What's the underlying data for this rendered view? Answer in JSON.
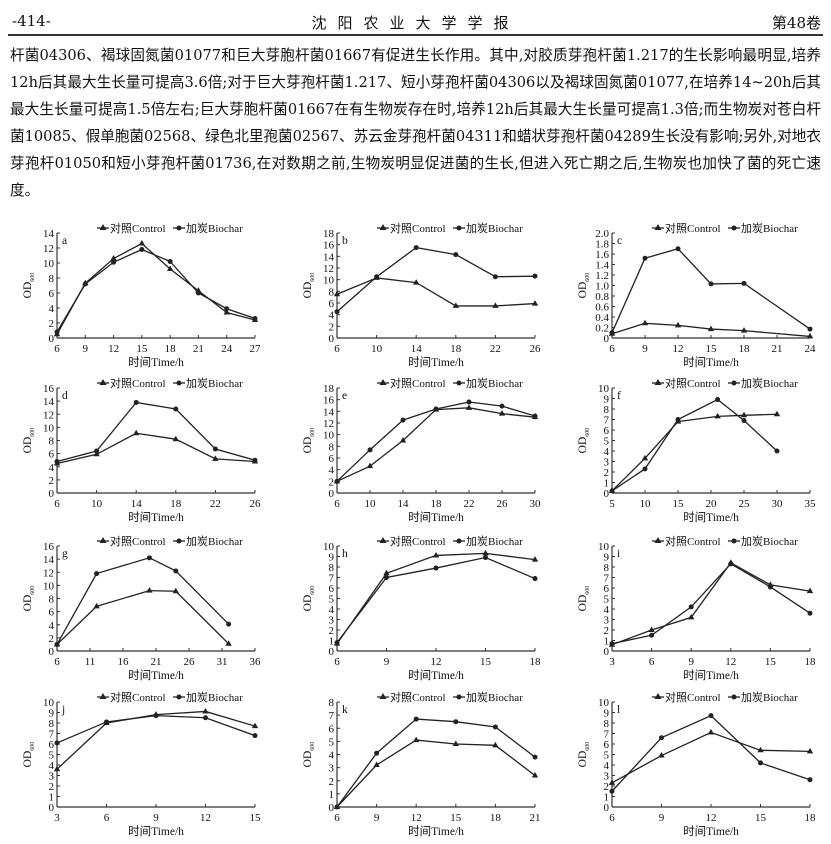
{
  "header": {
    "page": "-414-",
    "journal": "沈阳农业大学学报",
    "volume": "第48卷"
  },
  "body_text": [
    "杆菌04306、褐球固氮菌01077和巨大芽胞杆菌01667有促进生长作用。其中,对胶质芽孢杆菌1.217的生长影响最明显,培养12h后其最大生长量可提高3.6倍;对于巨大芽孢杆菌1.217、短小芽孢杆菌04306以及褐球固氮菌01077,在培养14~20h后其最大生长量可提高1.5倍左右;巨大芽胞杆菌01667在有生物炭存在时,培养12h后其最大生长量可提高1.3倍;而生物炭对苍白杆菌10085、假单胞菌02568、绿色北里孢菌02567、苏云金芽孢杆菌04311和蜡状芽孢杆菌04289生长没有影响;另外,对地衣芽孢杆01050和短小芽孢杆菌01736,在对数期之前,生物炭明显促进菌的生长,但进入死亡期之后,生物炭也加快了菌的死亡速度。"
  ],
  "legend": {
    "control": "对照Control",
    "biochar": "加炭Biochar"
  },
  "xlabel": "时间Time/h",
  "ylabel": {
    "main": "OD",
    "sub": "600"
  },
  "chart_data": [
    {
      "type": "line",
      "label": "a",
      "xlim": [
        6,
        27
      ],
      "xticks": [
        "6",
        "9",
        "12",
        "15",
        "18",
        "21",
        "24",
        "27"
      ],
      "ylim": [
        0,
        14
      ],
      "yticks": [
        "0",
        "2",
        "4",
        "6",
        "8",
        "10",
        "12",
        "14"
      ],
      "x": [
        6,
        9,
        12,
        15,
        18,
        21,
        24,
        27
      ],
      "series": [
        {
          "name": "对照Control",
          "values": [
            0.5,
            7.3,
            10.6,
            12.6,
            9.2,
            6.3,
            3.4,
            2.4
          ]
        },
        {
          "name": "加炭Biochar",
          "values": [
            0.8,
            7.2,
            10.1,
            11.8,
            10.2,
            6.0,
            3.9,
            2.6
          ]
        }
      ]
    },
    {
      "type": "line",
      "label": "b",
      "xlim": [
        6,
        26
      ],
      "xticks": [
        "6",
        "10",
        "14",
        "18",
        "22",
        "26"
      ],
      "ylim": [
        0,
        18
      ],
      "yticks": [
        "0",
        "2",
        "4",
        "6",
        "8",
        "10",
        "12",
        "14",
        "16",
        "18"
      ],
      "x": [
        6,
        10,
        14,
        18,
        22,
        26
      ],
      "series": [
        {
          "name": "对照Control",
          "values": [
            7.5,
            10.3,
            9.5,
            5.5,
            5.5,
            5.9
          ]
        },
        {
          "name": "加炭Biochar",
          "values": [
            4.5,
            10.5,
            15.5,
            14.3,
            10.5,
            10.6
          ]
        }
      ]
    },
    {
      "type": "line",
      "label": "c",
      "xlim": [
        6,
        24
      ],
      "xticks": [
        "6",
        "9",
        "12",
        "15",
        "18",
        "21",
        "24"
      ],
      "ylim": [
        0,
        2
      ],
      "yticks": [
        "0",
        "0.2",
        "0.4",
        "0.6",
        "0.8",
        "1.0",
        "1.2",
        "1.4",
        "1.6",
        "1.8",
        "2.0"
      ],
      "x": [
        6,
        9,
        12,
        15,
        18,
        24
      ],
      "series": [
        {
          "name": "对照Control",
          "values": [
            0.08,
            0.28,
            0.24,
            0.17,
            0.14,
            0.03
          ]
        },
        {
          "name": "加炭Biochar",
          "values": [
            0.1,
            1.52,
            1.7,
            1.03,
            1.04,
            0.17
          ]
        }
      ]
    },
    {
      "type": "line",
      "label": "d",
      "xlim": [
        6,
        26
      ],
      "xticks": [
        "6",
        "10",
        "14",
        "18",
        "22",
        "26"
      ],
      "ylim": [
        0,
        16
      ],
      "yticks": [
        "0",
        "2",
        "4",
        "6",
        "8",
        "10",
        "12",
        "14",
        "16"
      ],
      "x": [
        6,
        10,
        14,
        18,
        22,
        26
      ],
      "series": [
        {
          "name": "对照Control",
          "values": [
            4.5,
            5.9,
            9.1,
            8.2,
            5.2,
            4.8
          ]
        },
        {
          "name": "加炭Biochar",
          "values": [
            4.8,
            6.4,
            13.8,
            12.8,
            6.7,
            5.0
          ]
        }
      ]
    },
    {
      "type": "line",
      "label": "e",
      "xlim": [
        6,
        30
      ],
      "xticks": [
        "6",
        "10",
        "14",
        "18",
        "22",
        "26",
        "30"
      ],
      "ylim": [
        0,
        18
      ],
      "yticks": [
        "0",
        "2",
        "4",
        "6",
        "8",
        "10",
        "12",
        "14",
        "16",
        "18"
      ],
      "x": [
        6,
        10,
        14,
        18,
        22,
        26,
        30
      ],
      "series": [
        {
          "name": "对照Control",
          "values": [
            2.0,
            4.6,
            9.0,
            14.3,
            14.6,
            13.6,
            13.0
          ]
        },
        {
          "name": "加炭Biochar",
          "values": [
            2.0,
            7.4,
            12.5,
            14.4,
            15.6,
            14.9,
            13.2
          ]
        }
      ]
    },
    {
      "type": "line",
      "label": "f",
      "xlim": [
        5,
        35
      ],
      "xticks": [
        "5",
        "10",
        "15",
        "20",
        "25",
        "30",
        "35"
      ],
      "ylim": [
        0,
        10
      ],
      "yticks": [
        "0",
        "1",
        "2",
        "3",
        "4",
        "5",
        "6",
        "7",
        "8",
        "9",
        "10"
      ],
      "x": [
        5,
        10,
        15,
        21,
        25,
        30
      ],
      "series": [
        {
          "name": "对照Control",
          "values": [
            0.2,
            3.3,
            6.8,
            7.3,
            7.4,
            7.5
          ]
        },
        {
          "name": "加炭Biochar",
          "values": [
            0.2,
            2.3,
            7.0,
            8.9,
            6.9,
            4.0
          ]
        }
      ]
    },
    {
      "type": "line",
      "label": "g",
      "xlim": [
        6,
        36
      ],
      "xticks": [
        "6",
        "11",
        "16",
        "21",
        "26",
        "31",
        "36"
      ],
      "ylim": [
        0,
        16
      ],
      "yticks": [
        "0",
        "2",
        "4",
        "6",
        "8",
        "10",
        "12",
        "14",
        "16"
      ],
      "x": [
        6,
        12,
        20,
        24,
        32
      ],
      "series": [
        {
          "name": "对照Control",
          "values": [
            1.0,
            6.8,
            9.2,
            9.1,
            1.1
          ]
        },
        {
          "name": "加炭Biochar",
          "values": [
            1.0,
            11.8,
            14.2,
            12.2,
            4.1
          ]
        }
      ]
    },
    {
      "type": "line",
      "label": "h",
      "xlim": [
        6,
        18
      ],
      "xticks": [
        "6",
        "9",
        "12",
        "15",
        "18"
      ],
      "ylim": [
        0,
        10
      ],
      "yticks": [
        "0",
        "1",
        "2",
        "3",
        "4",
        "5",
        "6",
        "7",
        "8",
        "9",
        "10"
      ],
      "x": [
        6,
        9,
        12,
        15,
        18
      ],
      "series": [
        {
          "name": "对照Control",
          "values": [
            0.7,
            7.4,
            9.1,
            9.3,
            8.7
          ]
        },
        {
          "name": "加炭Biochar",
          "values": [
            0.8,
            7.0,
            7.9,
            8.9,
            6.9
          ]
        }
      ]
    },
    {
      "type": "line",
      "label": "i",
      "xlim": [
        3,
        18
      ],
      "xticks": [
        "3",
        "6",
        "9",
        "12",
        "15",
        "18"
      ],
      "ylim": [
        0,
        10
      ],
      "yticks": [
        "0",
        "1",
        "2",
        "3",
        "4",
        "5",
        "6",
        "7",
        "8",
        "9",
        "10"
      ],
      "x": [
        3,
        6,
        9,
        12,
        15,
        18
      ],
      "series": [
        {
          "name": "对照Control",
          "values": [
            0.6,
            2.0,
            3.2,
            8.4,
            6.3,
            5.7
          ]
        },
        {
          "name": "加炭Biochar",
          "values": [
            0.7,
            1.5,
            4.2,
            8.3,
            6.1,
            3.6
          ]
        }
      ]
    },
    {
      "type": "line",
      "label": "j",
      "xlim": [
        3,
        15
      ],
      "xticks": [
        "3",
        "6",
        "9",
        "12",
        "15"
      ],
      "ylim": [
        0,
        10
      ],
      "yticks": [
        "0",
        "1",
        "2",
        "3",
        "4",
        "5",
        "6",
        "7",
        "8",
        "9",
        "10"
      ],
      "x": [
        3,
        6,
        9,
        12,
        15
      ],
      "series": [
        {
          "name": "对照Control",
          "values": [
            3.6,
            8.0,
            8.8,
            9.1,
            7.7
          ]
        },
        {
          "name": "加炭Biochar",
          "values": [
            6.1,
            8.1,
            8.7,
            8.5,
            6.8
          ]
        }
      ]
    },
    {
      "type": "line",
      "label": "k",
      "xlim": [
        6,
        21
      ],
      "xticks": [
        "6",
        "9",
        "12",
        "15",
        "18",
        "21"
      ],
      "ylim": [
        0,
        8
      ],
      "yticks": [
        "0",
        "1",
        "2",
        "3",
        "4",
        "5",
        "6",
        "7",
        "8"
      ],
      "x": [
        6,
        9,
        12,
        15,
        18,
        21
      ],
      "series": [
        {
          "name": "对照Control",
          "values": [
            0,
            3.2,
            5.1,
            4.8,
            4.7,
            2.4
          ]
        },
        {
          "name": "加炭Biochar",
          "values": [
            0,
            4.1,
            6.7,
            6.5,
            6.1,
            3.8
          ]
        }
      ]
    },
    {
      "type": "line",
      "label": "l",
      "xlim": [
        6,
        18
      ],
      "xticks": [
        "6",
        "9",
        "12",
        "15",
        "18"
      ],
      "ylim": [
        0,
        10
      ],
      "yticks": [
        "0",
        "1",
        "2",
        "3",
        "4",
        "5",
        "6",
        "7",
        "8",
        "9",
        "10"
      ],
      "x": [
        6,
        9,
        12,
        15,
        18
      ],
      "series": [
        {
          "name": "对照Control",
          "values": [
            2.3,
            4.9,
            7.1,
            5.4,
            5.3
          ]
        },
        {
          "name": "加炭Biochar",
          "values": [
            1.5,
            6.6,
            8.7,
            4.2,
            2.6
          ]
        }
      ]
    }
  ]
}
